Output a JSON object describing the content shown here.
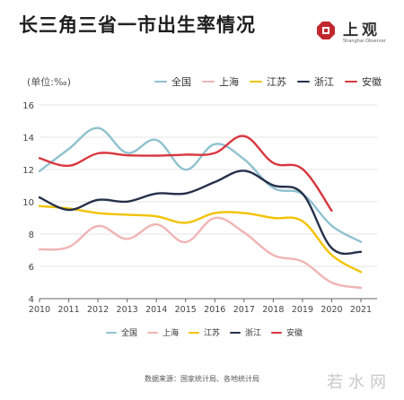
{
  "title": "长三角三省一市出生率情况",
  "logo": {
    "text": "上观",
    "subtext": "Shanghai Observer",
    "icon": "seal-icon"
  },
  "unit_label": "(单位:‰)",
  "colors": {
    "全国": "#8fc1cf",
    "上海": "#f0b4b4",
    "江苏": "#f2c200",
    "浙江": "#25304a",
    "安徽": "#d9363e",
    "grid": "#e6e6e6",
    "axis": "#666666"
  },
  "chart_data": {
    "type": "line",
    "ylabel": "(单位:‰)",
    "ylim": [
      4,
      16
    ],
    "yticks": [
      4,
      6,
      8,
      10,
      12,
      14,
      16
    ],
    "x": [
      2010,
      2011,
      2012,
      2013,
      2014,
      2015,
      2016,
      2017,
      2018,
      2019,
      2020,
      2021
    ],
    "grid": true,
    "legend_position": "top",
    "series": [
      {
        "name": "全国",
        "values": [
          11.9,
          13.27,
          14.57,
          13.03,
          13.83,
          11.99,
          13.57,
          12.64,
          10.86,
          10.48,
          8.52,
          7.52
        ]
      },
      {
        "name": "上海",
        "values": [
          7.05,
          7.2,
          8.5,
          7.7,
          8.6,
          7.5,
          9.0,
          8.1,
          6.7,
          6.3,
          5.0,
          4.67
        ]
      },
      {
        "name": "江苏",
        "values": [
          9.73,
          9.59,
          9.3,
          9.2,
          9.1,
          8.7,
          9.3,
          9.3,
          9.0,
          8.8,
          6.7,
          5.65
        ]
      },
      {
        "name": "浙江",
        "values": [
          10.27,
          9.5,
          10.12,
          10.01,
          10.51,
          10.52,
          11.22,
          11.92,
          11.02,
          10.51,
          7.13,
          6.9
        ]
      },
      {
        "name": "安徽",
        "values": [
          12.7,
          12.23,
          13.0,
          12.88,
          12.86,
          12.92,
          13.02,
          14.07,
          12.41,
          12.03,
          9.45,
          null
        ]
      }
    ]
  },
  "source_note": "数据来源：国家统计局、各地统计局",
  "watermark": "若水网"
}
